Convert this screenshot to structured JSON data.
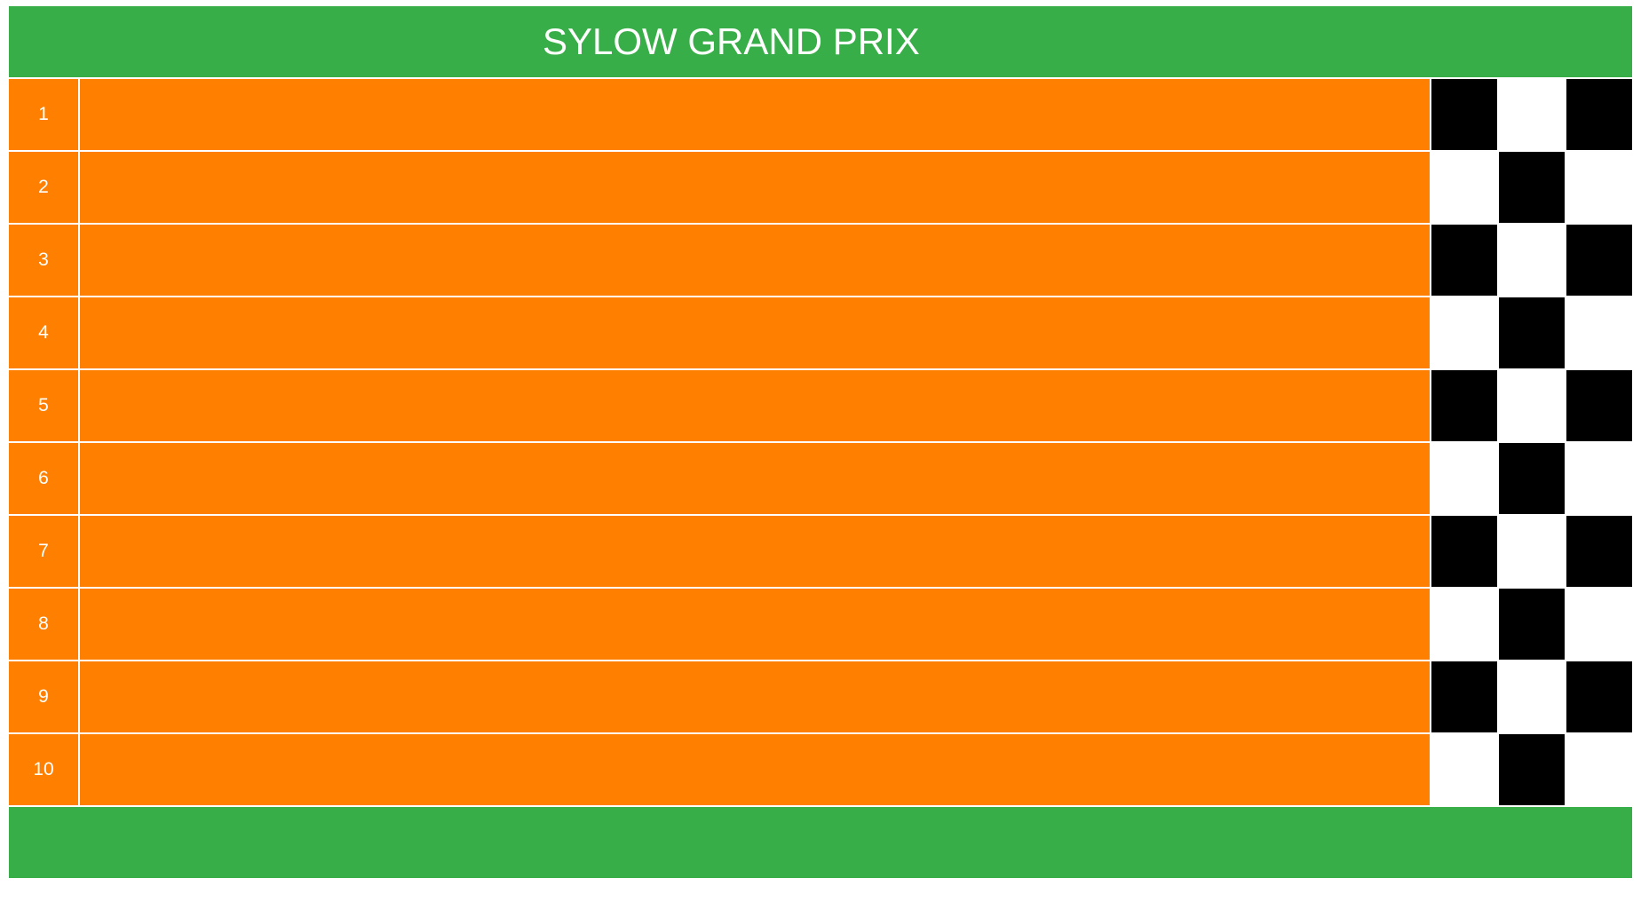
{
  "race": {
    "title": "SYLOW GRAND PRIX"
  },
  "lanes": [
    {
      "number": "1"
    },
    {
      "number": "2"
    },
    {
      "number": "3"
    },
    {
      "number": "4"
    },
    {
      "number": "5"
    },
    {
      "number": "6"
    },
    {
      "number": "7"
    },
    {
      "number": "8"
    },
    {
      "number": "9"
    },
    {
      "number": "10"
    }
  ],
  "colors": {
    "header_footer": "#37ae47",
    "track": "#ff8000",
    "flag_dark": "#000000",
    "flag_light": "#ffffff",
    "text": "#ffffff"
  }
}
